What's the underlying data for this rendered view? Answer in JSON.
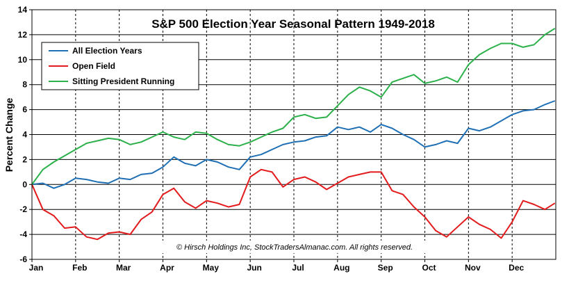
{
  "chart_data": {
    "type": "line",
    "title": "S&P 500 Election Year Seasonal Pattern 1949-2018",
    "ylabel": "Percent Change",
    "xlabel": "",
    "ylim": [
      -6,
      14
    ],
    "yticks": [
      -6,
      -4,
      -2,
      0,
      2,
      4,
      6,
      8,
      10,
      12,
      14
    ],
    "months": [
      "Jan",
      "Feb",
      "Mar",
      "Apr",
      "May",
      "Jun",
      "Jul",
      "Aug",
      "Sep",
      "Oct",
      "Nov",
      "Dec"
    ],
    "grid": "horizontal-solid, vertical-dashed",
    "legend_position": "top-left",
    "copyright": "© Hirsch Holdings Inc, StockTradersAlmanac.com.  All rights reserved.",
    "series": [
      {
        "name": "All Election Years",
        "color": "#1f6fb5",
        "x": [
          0,
          0.25,
          0.5,
          0.75,
          1.0,
          1.25,
          1.5,
          1.75,
          2.0,
          2.25,
          2.5,
          2.75,
          3.0,
          3.25,
          3.5,
          3.75,
          4.0,
          4.25,
          4.5,
          4.75,
          5.0,
          5.25,
          5.5,
          5.75,
          6.0,
          6.25,
          6.5,
          6.75,
          7.0,
          7.25,
          7.5,
          7.75,
          8.0,
          8.25,
          8.5,
          8.75,
          9.0,
          9.25,
          9.5,
          9.75,
          10.0,
          10.25,
          10.5,
          10.75,
          11.0,
          11.25,
          11.5,
          11.75,
          11.98
        ],
        "values": [
          0,
          0.1,
          -0.3,
          0,
          0.5,
          0.4,
          0.2,
          0.1,
          0.5,
          0.4,
          0.8,
          0.9,
          1.4,
          2.2,
          1.7,
          1.5,
          2.0,
          1.8,
          1.4,
          1.2,
          2.2,
          2.4,
          2.8,
          3.2,
          3.4,
          3.5,
          3.8,
          3.9,
          4.6,
          4.4,
          4.6,
          4.2,
          4.8,
          4.5,
          4.0,
          3.6,
          3.0,
          3.2,
          3.5,
          3.3,
          4.5,
          4.3,
          4.6,
          5.1,
          5.6,
          5.9,
          6.0,
          6.4,
          6.7
        ]
      },
      {
        "name": "Open Field",
        "color": "#e31a1c",
        "x": [
          0,
          0.25,
          0.5,
          0.75,
          1.0,
          1.25,
          1.5,
          1.75,
          2.0,
          2.25,
          2.5,
          2.75,
          3.0,
          3.25,
          3.5,
          3.75,
          4.0,
          4.25,
          4.5,
          4.75,
          5.0,
          5.25,
          5.5,
          5.75,
          6.0,
          6.25,
          6.5,
          6.75,
          7.0,
          7.25,
          7.5,
          7.75,
          8.0,
          8.25,
          8.5,
          8.75,
          9.0,
          9.25,
          9.5,
          9.75,
          10.0,
          10.25,
          10.5,
          10.75,
          11.0,
          11.25,
          11.5,
          11.75,
          11.98
        ],
        "values": [
          0,
          -2.0,
          -2.5,
          -3.5,
          -3.4,
          -4.2,
          -4.4,
          -3.9,
          -3.8,
          -4.0,
          -2.8,
          -2.2,
          -0.8,
          -0.3,
          -1.4,
          -1.9,
          -1.3,
          -1.5,
          -1.8,
          -1.6,
          0.6,
          1.2,
          1.0,
          -0.2,
          0.4,
          0.6,
          0.2,
          -0.4,
          0.1,
          0.6,
          0.8,
          1.0,
          1.0,
          -0.5,
          -0.8,
          -1.8,
          -2.6,
          -3.7,
          -4.2,
          -3.4,
          -2.6,
          -3.2,
          -3.6,
          -4.3,
          -3.0,
          -1.3,
          -1.6,
          -2.0,
          -1.5
        ]
      },
      {
        "name": "Sitting President Running",
        "color": "#2bb04a",
        "x": [
          0,
          0.25,
          0.5,
          0.75,
          1.0,
          1.25,
          1.5,
          1.75,
          2.0,
          2.25,
          2.5,
          2.75,
          3.0,
          3.25,
          3.5,
          3.75,
          4.0,
          4.25,
          4.5,
          4.75,
          5.0,
          5.25,
          5.5,
          5.75,
          6.0,
          6.25,
          6.5,
          6.75,
          7.0,
          7.25,
          7.5,
          7.75,
          8.0,
          8.25,
          8.5,
          8.75,
          9.0,
          9.25,
          9.5,
          9.75,
          10.0,
          10.25,
          10.5,
          10.75,
          11.0,
          11.25,
          11.5,
          11.75,
          11.98
        ],
        "values": [
          0,
          1.2,
          1.8,
          2.3,
          2.8,
          3.3,
          3.5,
          3.7,
          3.6,
          3.2,
          3.4,
          3.8,
          4.2,
          3.8,
          3.6,
          4.2,
          4.1,
          3.6,
          3.2,
          3.1,
          3.4,
          3.8,
          4.2,
          4.5,
          5.4,
          5.6,
          5.3,
          5.4,
          6.3,
          7.2,
          7.8,
          7.5,
          7.0,
          8.2,
          8.5,
          8.8,
          8.1,
          8.3,
          8.6,
          8.2,
          9.6,
          10.4,
          10.9,
          11.3,
          11.3,
          11.0,
          11.2,
          12.0,
          12.5
        ]
      }
    ]
  }
}
